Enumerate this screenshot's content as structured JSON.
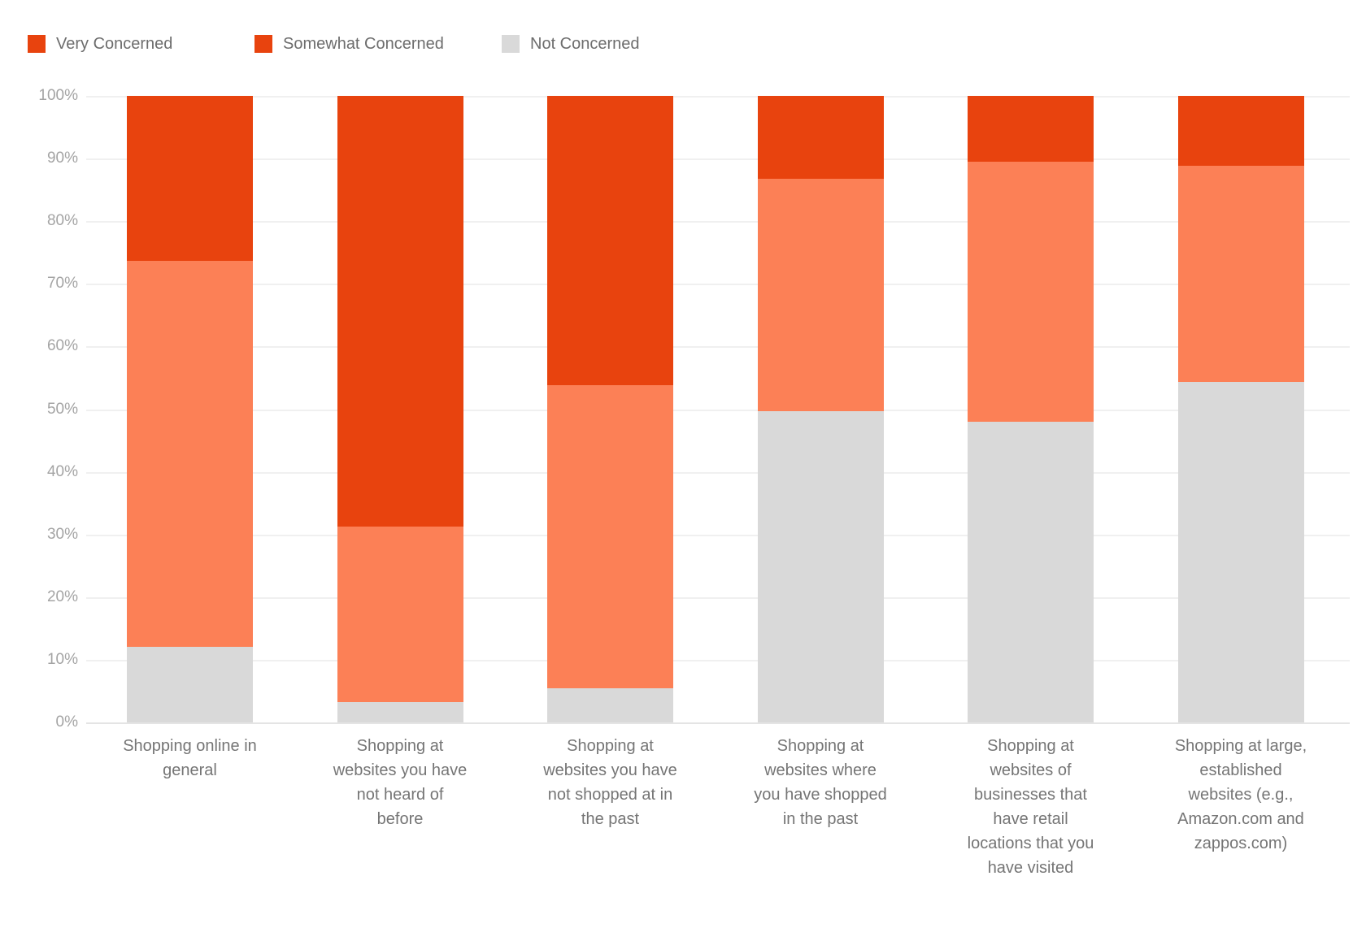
{
  "legend": {
    "items": [
      {
        "label": "Very Concerned",
        "swatch_color": "#e8430e"
      },
      {
        "label": "Somewhat Concerned",
        "swatch_color": "#e8430e"
      },
      {
        "label": "Not Concerned",
        "swatch_color": "#d9d9d9"
      }
    ]
  },
  "y_axis": {
    "tick_labels": [
      "100%",
      "90%",
      "80%",
      "70%",
      "60%",
      "50%",
      "40%",
      "30%",
      "20%",
      "10%",
      "0%"
    ]
  },
  "chart_data": {
    "type": "bar",
    "stacked": true,
    "stacking": "percent",
    "title": "",
    "xlabel": "",
    "ylabel": "",
    "ylim": [
      0,
      100
    ],
    "ytick_step": 10,
    "grid": true,
    "legend_position": "top-left",
    "categories": [
      "Shopping online in general",
      "Shopping at websites you have not heard of before",
      "Shopping at websites you have not shopped at in the past",
      "Shopping at websites where you have shopped in the past",
      "Shopping at websites of businesses that have retail locations that you have visited",
      "Shopping at large, established websites (e.g., Amazon.com and zappos.com)"
    ],
    "category_lines": [
      [
        "Shopping online in",
        "general"
      ],
      [
        "Shopping at",
        "websites you have",
        "not heard of",
        "before"
      ],
      [
        "Shopping at",
        "websites you have",
        "not shopped at in",
        "the past"
      ],
      [
        "Shopping at",
        "websites where",
        "you have shopped",
        "in the past"
      ],
      [
        "Shopping at",
        "websites of",
        "businesses that",
        "have retail",
        "locations that you",
        "have visited"
      ],
      [
        "Shopping at large,",
        "established",
        "websites (e.g.,",
        "Amazon.com and",
        "zappos.com)"
      ]
    ],
    "series": [
      {
        "name": "Very Concerned",
        "color": "#e8430e",
        "values": [
          26.3,
          68.8,
          46.2,
          13.2,
          10.5,
          11.2
        ]
      },
      {
        "name": "Somewhat Concerned",
        "color": "#fc8056",
        "values": [
          61.7,
          28.0,
          48.4,
          37.1,
          41.5,
          34.4
        ]
      },
      {
        "name": "Not Concerned",
        "color": "#d9d9d9",
        "values": [
          12.0,
          3.2,
          5.4,
          49.7,
          48.0,
          54.4
        ]
      }
    ]
  }
}
